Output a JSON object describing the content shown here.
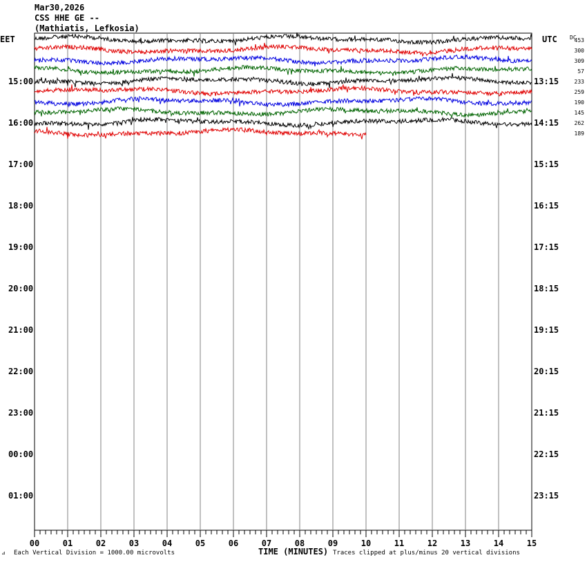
{
  "header": {
    "date": "Mar30,2026",
    "station": "CSS HHE GE --",
    "location": "(Mathiatis, Lefkosia)"
  },
  "left_zone_label": "EET",
  "right_zone_label": "UTC",
  "dc_label": "DC",
  "footer": {
    "scale_note": "Each Vertical Division = 1000.00 microvolts",
    "axis_title": "TIME (MINUTES)",
    "clip_note": "Traces clipped at plus/minus 20 vertical divisions",
    "corner_mark": "⊿"
  },
  "colors": {
    "black": "#000000",
    "red": "#e00000",
    "blue": "#0000e0",
    "green": "#006400",
    "grid": "#808080"
  },
  "chart_data": {
    "type": "line",
    "title": "CSS HHE GE --",
    "xlabel": "TIME (MINUTES)",
    "x_ticks": [
      "00",
      "01",
      "02",
      "03",
      "04",
      "05",
      "06",
      "07",
      "08",
      "09",
      "10",
      "11",
      "12",
      "13",
      "14",
      "15"
    ],
    "xlim": [
      0,
      15
    ],
    "grid": true,
    "left_hour_labels": [
      "15:00",
      "16:00",
      "17:00",
      "18:00",
      "19:00",
      "20:00",
      "21:00",
      "22:00",
      "23:00",
      "00:00",
      "01:00"
    ],
    "right_hour_labels": [
      "13:15",
      "14:15",
      "15:15",
      "16:15",
      "17:15",
      "18:15",
      "19:15",
      "20:15",
      "21:15",
      "22:15",
      "23:15"
    ],
    "traces": [
      {
        "color": "black",
        "dc": "453",
        "start_min": 0,
        "end_min": 15
      },
      {
        "color": "red",
        "dc": "300",
        "start_min": 0,
        "end_min": 15
      },
      {
        "color": "blue",
        "dc": "309",
        "start_min": 0,
        "end_min": 15
      },
      {
        "color": "green",
        "dc": "57",
        "start_min": 0,
        "end_min": 15
      },
      {
        "color": "black",
        "dc": "233",
        "start_min": 0,
        "end_min": 15
      },
      {
        "color": "red",
        "dc": "259",
        "start_min": 0,
        "end_min": 15
      },
      {
        "color": "blue",
        "dc": "190",
        "start_min": 0,
        "end_min": 15
      },
      {
        "color": "green",
        "dc": "145",
        "start_min": 0,
        "end_min": 15
      },
      {
        "color": "black",
        "dc": "262",
        "start_min": 0,
        "end_min": 15
      },
      {
        "color": "red",
        "dc": "189",
        "start_min": 0,
        "end_min": 10
      }
    ]
  }
}
